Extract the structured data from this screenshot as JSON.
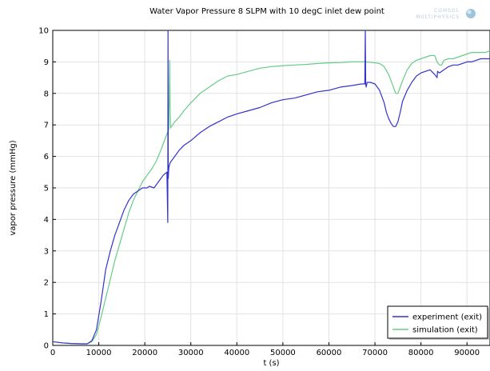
{
  "logo": {
    "line1": "COMSOL",
    "line2": "MULTIPHYSICS"
  },
  "chart_data": {
    "type": "line",
    "title": "Water Vapor Pressure 8 SLPM with 10 degC inlet dew point",
    "xlabel": "t (s)",
    "ylabel": "vapor pressure (mmHg)",
    "xlim": [
      0,
      95000
    ],
    "ylim": [
      0,
      10
    ],
    "x_ticks": [
      0,
      10000,
      20000,
      30000,
      40000,
      50000,
      60000,
      70000,
      80000,
      90000
    ],
    "y_ticks": [
      0,
      1,
      2,
      3,
      4,
      5,
      6,
      7,
      8,
      9,
      10
    ],
    "grid": true,
    "legend_position": "bottom-right",
    "series": [
      {
        "name": "experiment (exit)",
        "color": "#3333cc",
        "x": [
          0,
          2000,
          4000,
          6000,
          7500,
          8500,
          9500,
          10500,
          11500,
          12500,
          13500,
          14500,
          15500,
          16500,
          17500,
          18500,
          19500,
          20500,
          21000,
          22000,
          23000,
          24000,
          24800,
          25000,
          25050,
          25100,
          25200,
          25300,
          25400,
          25500,
          26500,
          27500,
          28500,
          30000,
          32000,
          34000,
          36000,
          38000,
          40000,
          42500,
          45000,
          47500,
          50000,
          52500,
          55000,
          57500,
          60000,
          62500,
          65000,
          67000,
          67800,
          67900,
          68000,
          68100,
          68300,
          69000,
          70000,
          71000,
          72000,
          72500,
          73000,
          73500,
          74000,
          74500,
          75000,
          75500,
          76000,
          77000,
          78000,
          79000,
          80000,
          81000,
          82000,
          83000,
          83500,
          83600,
          84000,
          85000,
          86000,
          87000,
          88000,
          89000,
          90000,
          91000,
          92000,
          93000,
          94000,
          95000
        ],
        "y": [
          0.12,
          0.08,
          0.06,
          0.05,
          0.05,
          0.15,
          0.5,
          1.4,
          2.4,
          3.0,
          3.5,
          3.9,
          4.3,
          4.6,
          4.8,
          4.9,
          5.0,
          5.0,
          5.05,
          5.0,
          5.2,
          5.4,
          5.5,
          3.9,
          10.0,
          5.3,
          5.6,
          5.7,
          5.75,
          5.8,
          6.0,
          6.2,
          6.35,
          6.5,
          6.75,
          6.95,
          7.1,
          7.25,
          7.35,
          7.45,
          7.55,
          7.7,
          7.8,
          7.85,
          7.95,
          8.05,
          8.1,
          8.2,
          8.25,
          8.3,
          8.3,
          10.0,
          8.3,
          8.2,
          8.35,
          8.35,
          8.3,
          8.1,
          7.7,
          7.4,
          7.2,
          7.05,
          6.95,
          6.95,
          7.1,
          7.4,
          7.75,
          8.1,
          8.35,
          8.55,
          8.65,
          8.7,
          8.75,
          8.6,
          8.5,
          8.7,
          8.65,
          8.75,
          8.85,
          8.9,
          8.9,
          8.95,
          9.0,
          9.0,
          9.05,
          9.1,
          9.1,
          9.1
        ]
      },
      {
        "name": "simulation (exit)",
        "color": "#66cc88",
        "x": [
          0,
          2000,
          4000,
          6000,
          7500,
          8500,
          9500,
          10500,
          11500,
          12500,
          13500,
          14500,
          15500,
          16500,
          17500,
          18500,
          19500,
          20500,
          21500,
          22500,
          23500,
          24500,
          25200,
          25400,
          25500,
          25600,
          25800,
          26500,
          27500,
          28500,
          30000,
          32000,
          34000,
          36000,
          38000,
          40000,
          42500,
          45000,
          47500,
          50000,
          52500,
          55000,
          57500,
          60000,
          62500,
          65000,
          67500,
          69500,
          71000,
          72000,
          73000,
          74000,
          74500,
          75000,
          76000,
          77000,
          78000,
          79000,
          80000,
          81000,
          82000,
          83000,
          83500,
          84000,
          84500,
          85000,
          86000,
          87000,
          88000,
          89000,
          90000,
          91000,
          92000,
          93000,
          94000,
          95000
        ],
        "y": [
          0.12,
          0.08,
          0.06,
          0.05,
          0.05,
          0.12,
          0.35,
          0.9,
          1.5,
          2.1,
          2.7,
          3.2,
          3.7,
          4.2,
          4.6,
          4.9,
          5.2,
          5.4,
          5.6,
          5.85,
          6.2,
          6.6,
          6.85,
          9.05,
          7.5,
          6.9,
          6.95,
          7.1,
          7.25,
          7.45,
          7.7,
          8.0,
          8.2,
          8.4,
          8.55,
          8.6,
          8.7,
          8.8,
          8.85,
          8.88,
          8.9,
          8.92,
          8.95,
          8.97,
          8.98,
          9.0,
          9.0,
          8.98,
          8.95,
          8.85,
          8.6,
          8.2,
          8.0,
          8.0,
          8.4,
          8.75,
          8.95,
          9.05,
          9.1,
          9.15,
          9.2,
          9.2,
          9.0,
          8.9,
          8.9,
          9.05,
          9.1,
          9.1,
          9.15,
          9.2,
          9.25,
          9.3,
          9.3,
          9.3,
          9.3,
          9.35
        ]
      }
    ]
  }
}
